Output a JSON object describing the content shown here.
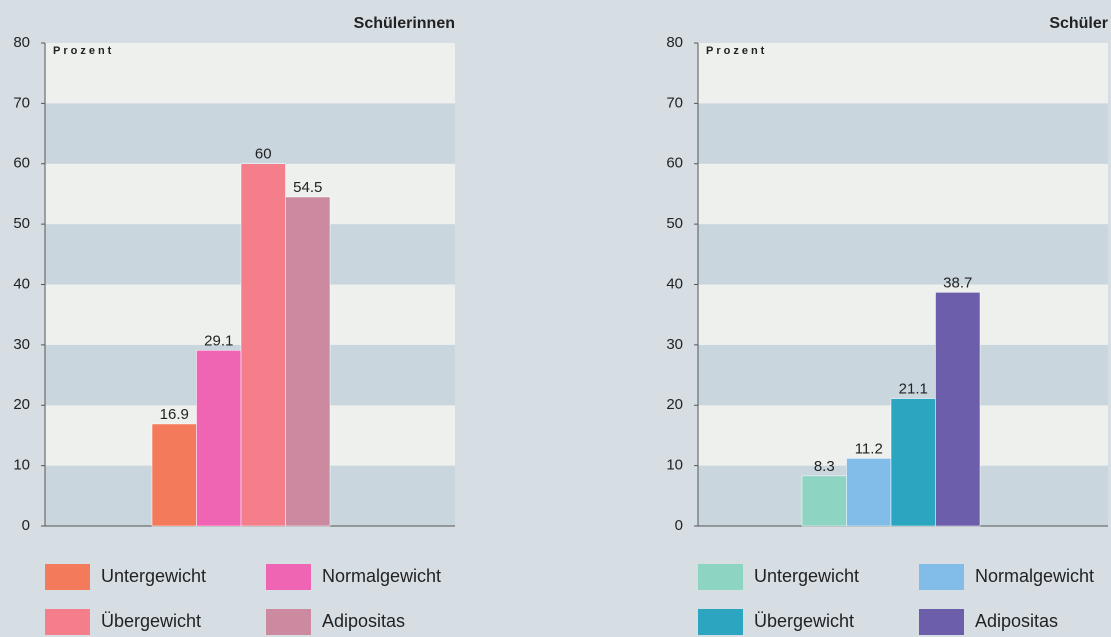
{
  "chart_data": [
    {
      "type": "bar",
      "title": "Schülerinnen",
      "ylabel": "Prozent",
      "categories": [
        null
      ],
      "series": [
        {
          "name": "Untergewicht",
          "color": "#f47a5c",
          "values": [
            16.9
          ]
        },
        {
          "name": "Normalgewicht",
          "color": "#f064b4",
          "values": [
            29.1
          ]
        },
        {
          "name": "Übergewicht",
          "color": "#f47e8a",
          "values": [
            60
          ]
        },
        {
          "name": "Adipositas",
          "color": "#cc8aa0",
          "values": [
            54.5
          ]
        }
      ],
      "ylim": [
        0,
        80
      ],
      "yticks": [
        0,
        10,
        20,
        30,
        40,
        50,
        60,
        70,
        80
      ],
      "grid": true
    },
    {
      "type": "bar",
      "title": "Schüler",
      "ylabel": "Prozent",
      "categories": [
        null
      ],
      "series": [
        {
          "name": "Untergewicht",
          "color": "#8ed4c2",
          "values": [
            8.3
          ]
        },
        {
          "name": "Normalgewicht",
          "color": "#82bdea",
          "values": [
            11.2
          ]
        },
        {
          "name": "Übergewicht",
          "color": "#2ca6c0",
          "values": [
            21.1
          ]
        },
        {
          "name": "Adipositas",
          "color": "#6c5eaa",
          "values": [
            38.7
          ]
        }
      ],
      "ylim": [
        0,
        80
      ],
      "yticks": [
        0,
        10,
        20,
        30,
        40,
        50,
        60,
        70,
        80
      ],
      "grid": true
    }
  ]
}
